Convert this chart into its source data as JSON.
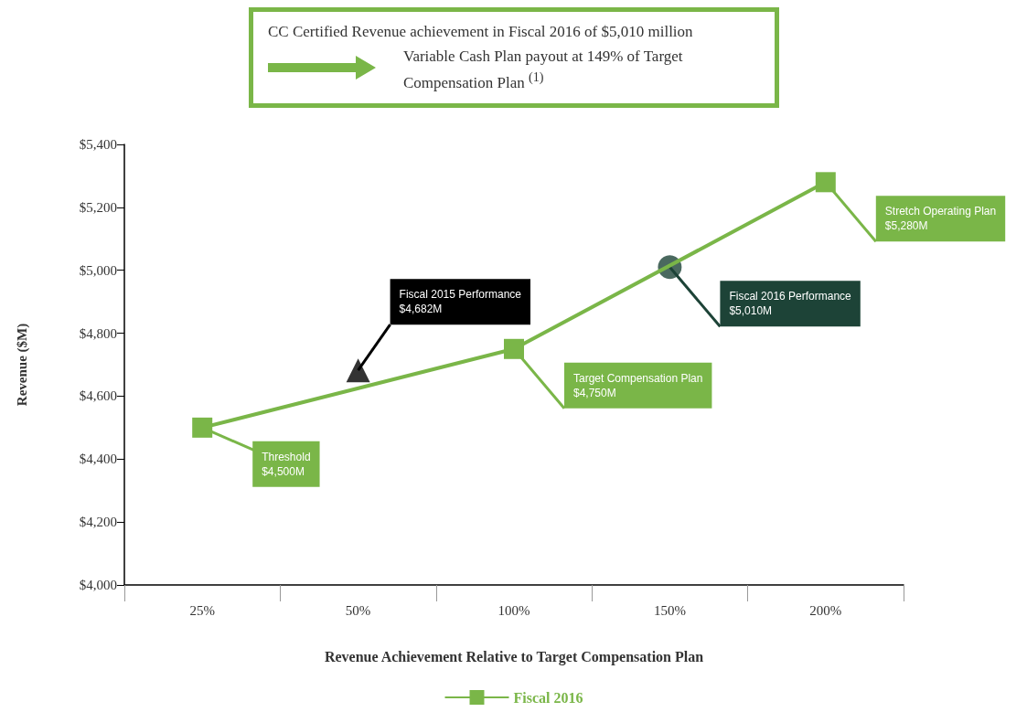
{
  "chart_data": {
    "type": "line",
    "title": "CC Certified Revenue achievement in Fiscal 2016 of $5,010 million",
    "subtitle": "Variable Cash Plan payout at 149% of Target Compensation Plan $^{(1)}$",
    "xlabel": "Revenue Achievement Relative to Target Compensation Plan",
    "ylabel": "Revenue ($M)",
    "categories": [
      "25%",
      "50%",
      "100%",
      "150%",
      "200%"
    ],
    "series": [
      {
        "name": "Fiscal 2016",
        "type": "line",
        "color": "#7ab648",
        "marker": "square",
        "values": [
          4500,
          null,
          4750,
          null,
          5280
        ]
      },
      {
        "type": "scatter",
        "color": "#1d4337",
        "marker": "circle",
        "values": [
          null,
          null,
          null,
          5010,
          null
        ]
      },
      {
        "type": "scatter",
        "color": "#000000",
        "marker": "triangle",
        "values": [
          null,
          4682,
          null,
          null,
          null
        ]
      }
    ],
    "ylim": [
      4000,
      5400
    ],
    "yticks": [
      {
        "value": 4000,
        "label": "$4,000"
      },
      {
        "value": 4200,
        "label": "$4,200"
      },
      {
        "value": 4400,
        "label": "$4,400"
      },
      {
        "value": 4600,
        "label": "$4,600"
      },
      {
        "value": 4800,
        "label": "$4,800"
      },
      {
        "value": 5000,
        "label": "$5,000"
      },
      {
        "value": 5200,
        "label": "$5,200"
      },
      {
        "value": 5400,
        "label": "$5,400"
      }
    ],
    "annotations": [
      {
        "text": "Threshold\n$4,500M",
        "x": "25%",
        "y": 4500
      },
      {
        "text": "Fiscal 2015 Performance\n$4,682M",
        "x": "50%",
        "y": 4682
      },
      {
        "text": "Target Compensation Plan\n$4,750M",
        "x": "100%",
        "y": 4750
      },
      {
        "text": "Fiscal 2016 Performance\n$5,010M",
        "x": "150%",
        "y": 5010
      },
      {
        "text": "Stretch Operating Plan\n$5,280M",
        "x": "200%",
        "y": 5280
      }
    ],
    "grid": false,
    "legend": "bottom",
    "line_style": "solid"
  }
}
